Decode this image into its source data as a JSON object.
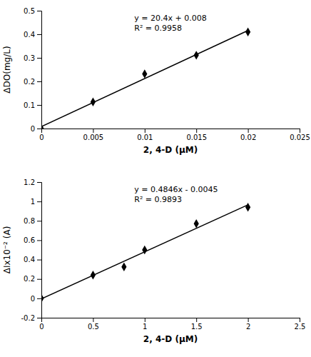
{
  "chart_data": [
    {
      "type": "scatter",
      "xlabel": "2, 4-D (μM)",
      "ylabel": "ΔDO(mg/L)",
      "series": [
        {
          "type": "scatter",
          "marker": "diamond",
          "color": "#000000",
          "x": [
            0,
            0.005,
            0.01,
            0.015,
            0.02
          ],
          "values": [
            0.0,
            0.113,
            0.232,
            0.311,
            0.41
          ]
        },
        {
          "type": "line",
          "line_style": "solid",
          "color": "#000000",
          "x": [
            0,
            0.02
          ],
          "values": [
            0.008,
            0.416
          ]
        }
      ],
      "annotations": [
        "y = 20.4x + 0.008",
        "R² = 0.9958"
      ],
      "xlim": [
        0,
        0.025
      ],
      "ylim": [
        0,
        0.5
      ],
      "xticks": [
        0,
        0.005,
        0.01,
        0.015,
        0.02,
        0.025
      ],
      "yticks": [
        0,
        0.1,
        0.2,
        0.3,
        0.4,
        0.5
      ],
      "grid": false
    },
    {
      "type": "scatter",
      "xlabel": "2, 4-D (μM)",
      "ylabel": "ΔIx10⁻² (A)",
      "series": [
        {
          "type": "scatter",
          "marker": "diamond",
          "color": "#000000",
          "x": [
            0,
            0.5,
            0.8,
            1.0,
            1.5,
            2.0
          ],
          "values": [
            0.0,
            0.24,
            0.325,
            0.5,
            0.77,
            0.94
          ]
        },
        {
          "type": "line",
          "line_style": "solid",
          "color": "#000000",
          "x": [
            0,
            2.0
          ],
          "values": [
            -0.0045,
            0.9647
          ]
        }
      ],
      "annotations": [
        "y = 0.4846x - 0.0045",
        "R² = 0.9893"
      ],
      "xlim": [
        0,
        2.5
      ],
      "ylim": [
        -0.2,
        1.2
      ],
      "xticks": [
        0,
        0.5,
        1,
        1.5,
        2,
        2.5
      ],
      "yticks": [
        -0.2,
        0,
        0.2,
        0.4,
        0.6,
        0.8,
        1,
        1.2
      ],
      "grid": false
    }
  ]
}
